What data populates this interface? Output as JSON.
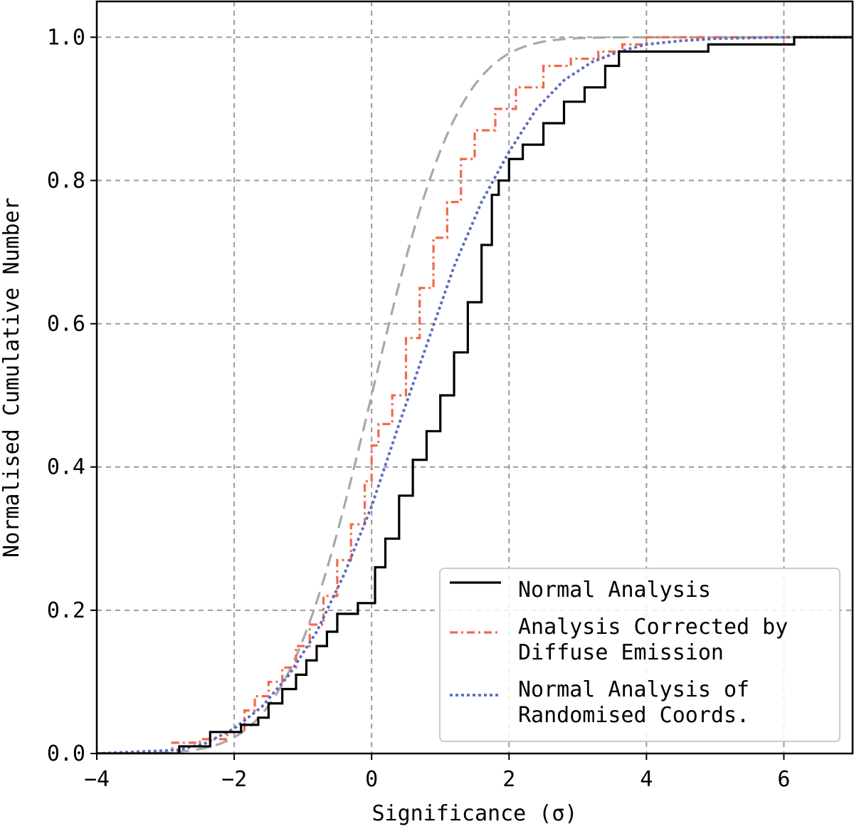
{
  "chart_data": {
    "type": "line",
    "xlabel": "Significance (σ)",
    "ylabel": "Normalised Cumulative Number",
    "xlim": [
      -4,
      7
    ],
    "ylim": [
      0,
      1.05
    ],
    "xticks": [
      -4,
      -2,
      0,
      2,
      4,
      6
    ],
    "xtick_labels": [
      "−4",
      "−2",
      "0",
      "2",
      "4",
      "6"
    ],
    "yticks": [
      0.0,
      0.2,
      0.4,
      0.6,
      0.8,
      1.0
    ],
    "ytick_labels": [
      "0.0",
      "0.2",
      "0.4",
      "0.6",
      "0.8",
      "1.0"
    ],
    "grid": true,
    "legend_position": "lower-right",
    "reference_curve": {
      "name": "Gaussian CDF (unlabelled)",
      "color": "#a8a8a8",
      "style": "dashed",
      "mean": 0,
      "sigma": 1
    },
    "series": [
      {
        "name": "Normal Analysis",
        "legend_lines": [
          "Normal Analysis"
        ],
        "color": "#000000",
        "style": "solid",
        "kind": "step",
        "x": [
          -2.8,
          -2.35,
          -1.9,
          -1.65,
          -1.5,
          -1.3,
          -1.1,
          -0.95,
          -0.8,
          -0.65,
          -0.5,
          -0.35,
          -0.2,
          0.05,
          0.2,
          0.4,
          0.6,
          0.8,
          1.0,
          1.2,
          1.4,
          1.6,
          1.75,
          1.85,
          2.0,
          2.2,
          2.5,
          2.8,
          3.1,
          3.4,
          3.6,
          4.9,
          6.15,
          7.0
        ],
        "y": [
          0.01,
          0.03,
          0.04,
          0.05,
          0.07,
          0.09,
          0.11,
          0.13,
          0.15,
          0.17,
          0.195,
          0.195,
          0.21,
          0.26,
          0.3,
          0.36,
          0.41,
          0.45,
          0.5,
          0.56,
          0.63,
          0.71,
          0.78,
          0.8,
          0.83,
          0.85,
          0.88,
          0.91,
          0.93,
          0.96,
          0.98,
          0.99,
          1.0,
          1.0
        ]
      },
      {
        "name": "Analysis Corrected by Diffuse Emission",
        "legend_lines": [
          "Analysis Corrected by",
          "Diffuse Emission"
        ],
        "color": "#f2694c",
        "style": "dashdot",
        "kind": "step",
        "x": [
          -2.9,
          -2.5,
          -2.1,
          -1.85,
          -1.7,
          -1.5,
          -1.3,
          -1.1,
          -0.9,
          -0.7,
          -0.5,
          -0.3,
          -0.1,
          0.0,
          0.1,
          0.3,
          0.5,
          0.7,
          0.9,
          1.1,
          1.3,
          1.5,
          1.8,
          2.1,
          2.5,
          2.9,
          3.3,
          3.65,
          4.0,
          7.0
        ],
        "y": [
          0.015,
          0.02,
          0.03,
          0.06,
          0.08,
          0.1,
          0.12,
          0.15,
          0.18,
          0.22,
          0.27,
          0.32,
          0.38,
          0.43,
          0.46,
          0.5,
          0.58,
          0.65,
          0.72,
          0.77,
          0.83,
          0.87,
          0.9,
          0.93,
          0.96,
          0.97,
          0.98,
          0.99,
          1.0,
          1.0
        ]
      },
      {
        "name": "Normal Analysis of Randomised Coords.",
        "legend_lines": [
          "Normal Analysis of",
          "Randomised Coords."
        ],
        "color": "#5a6bbf",
        "style": "dotted",
        "kind": "smooth",
        "x": [
          -2.8,
          -2.4,
          -2.0,
          -1.6,
          -1.2,
          -0.8,
          -0.4,
          0.0,
          0.4,
          0.8,
          1.2,
          1.6,
          2.0,
          2.4,
          2.8,
          3.2,
          3.6,
          4.0,
          4.5,
          5.0,
          6.0,
          7.0
        ],
        "y": [
          0.005,
          0.015,
          0.035,
          0.065,
          0.11,
          0.17,
          0.25,
          0.345,
          0.46,
          0.57,
          0.68,
          0.77,
          0.84,
          0.9,
          0.94,
          0.965,
          0.98,
          0.99,
          0.995,
          0.998,
          1.0,
          1.0
        ]
      }
    ]
  }
}
